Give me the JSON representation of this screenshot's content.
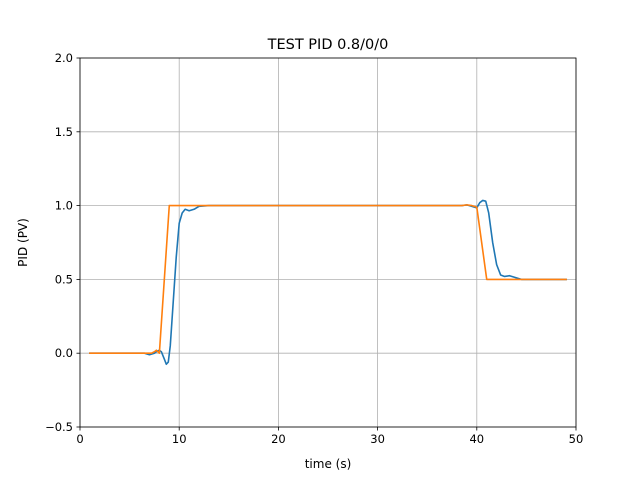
{
  "chart_data": {
    "type": "line",
    "title": "TEST PID 0.8/0/0",
    "xlabel": "time (s)",
    "ylabel": "PID (PV)",
    "xlim": [
      0,
      50
    ],
    "ylim": [
      -0.5,
      2.0
    ],
    "grid": true,
    "xticks": [
      0,
      10,
      20,
      30,
      40,
      50
    ],
    "xtick_labels": [
      "0",
      "10",
      "20",
      "30",
      "40",
      "50"
    ],
    "yticks": [
      -0.5,
      0.0,
      0.5,
      1.0,
      1.5,
      2.0
    ],
    "ytick_labels": [
      "−0.5",
      "0.0",
      "0.5",
      "1.0",
      "1.5",
      "2.0"
    ],
    "series": [
      {
        "color": "#1f77b4",
        "points": [
          [
            1,
            0.0
          ],
          [
            5,
            0.0
          ],
          [
            6.5,
            0.0
          ],
          [
            7.0,
            -0.01
          ],
          [
            7.5,
            0.0
          ],
          [
            7.8,
            0.015
          ],
          [
            8.0,
            0.02
          ],
          [
            8.2,
            0.01
          ],
          [
            8.5,
            -0.04
          ],
          [
            8.7,
            -0.075
          ],
          [
            8.9,
            -0.06
          ],
          [
            9.1,
            0.05
          ],
          [
            9.4,
            0.35
          ],
          [
            9.7,
            0.65
          ],
          [
            10.0,
            0.88
          ],
          [
            10.3,
            0.95
          ],
          [
            10.6,
            0.975
          ],
          [
            11.0,
            0.965
          ],
          [
            11.5,
            0.975
          ],
          [
            12.0,
            0.995
          ],
          [
            13.0,
            1.0
          ],
          [
            20,
            1.0
          ],
          [
            30,
            1.0
          ],
          [
            38.5,
            1.0
          ],
          [
            39.0,
            1.005
          ],
          [
            39.5,
            0.995
          ],
          [
            40.0,
            0.985
          ],
          [
            40.3,
            1.02
          ],
          [
            40.6,
            1.035
          ],
          [
            40.9,
            1.03
          ],
          [
            41.2,
            0.95
          ],
          [
            41.6,
            0.75
          ],
          [
            42.0,
            0.6
          ],
          [
            42.4,
            0.53
          ],
          [
            42.8,
            0.52
          ],
          [
            43.3,
            0.525
          ],
          [
            44.0,
            0.51
          ],
          [
            44.5,
            0.5
          ],
          [
            49,
            0.5
          ]
        ]
      },
      {
        "color": "#ff7f0e",
        "points": [
          [
            1,
            0.0
          ],
          [
            7.2,
            0.0
          ],
          [
            7.5,
            0.01
          ],
          [
            7.7,
            0.02
          ],
          [
            8.0,
            0.0
          ],
          [
            9.0,
            1.0
          ],
          [
            38.5,
            1.0
          ],
          [
            39.0,
            1.005
          ],
          [
            39.5,
            1.0
          ],
          [
            40.0,
            0.99
          ],
          [
            41.0,
            0.5
          ],
          [
            49,
            0.5
          ]
        ]
      }
    ]
  }
}
